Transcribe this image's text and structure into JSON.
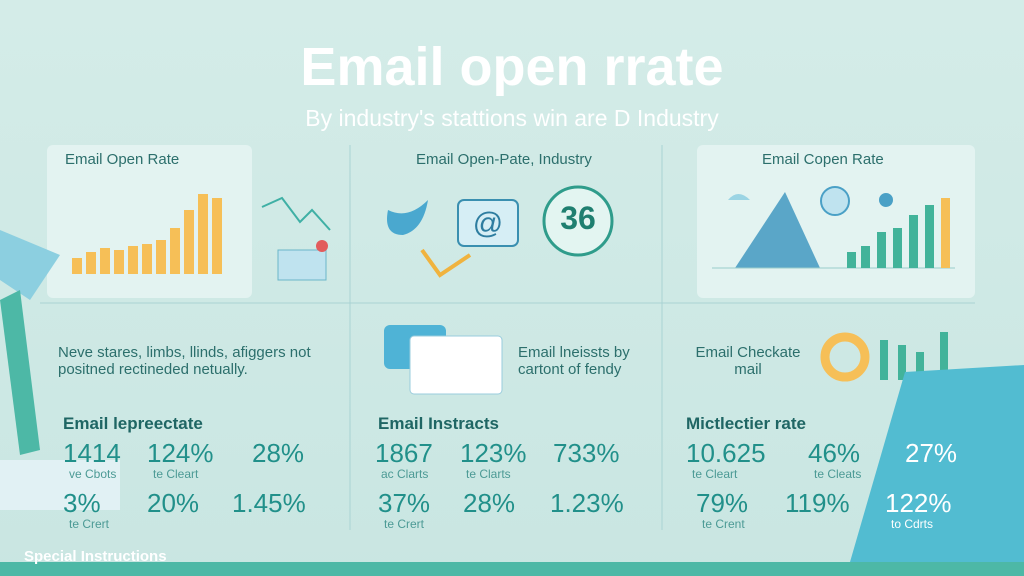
{
  "header": {
    "title": "Email open rrate",
    "subtitle": "By industry's stattions win are D Industry"
  },
  "panels": [
    {
      "title": "Email Open Rate"
    },
    {
      "title": "Email Open-Pate, Industry",
      "badge": "36"
    },
    {
      "title": "Email Copen Rate"
    }
  ],
  "notes": [
    {
      "text": "Neve stares, limbs, llinds, afiggers not positned rectineded netually."
    },
    {
      "text": "Email lneissts by cartont of fendy"
    },
    {
      "text": "Email Checkate mail"
    }
  ],
  "stat_groups": [
    {
      "heading": "Email lepreectate",
      "items": [
        {
          "text": "1414",
          "caption": "ve Cbots"
        },
        {
          "text": "124%",
          "caption": "te Cleart"
        },
        {
          "text": "28%"
        },
        {
          "text": "3%",
          "caption": "te Crert"
        },
        {
          "text": "20%"
        },
        {
          "text": "1.45%"
        }
      ]
    },
    {
      "heading": "Email Instracts",
      "items": [
        {
          "text": "1867",
          "caption": "ac Clarts"
        },
        {
          "text": "123%",
          "caption": "te Clarts"
        },
        {
          "text": "733%"
        },
        {
          "text": "37%",
          "caption": "te Crert"
        },
        {
          "text": "28%"
        },
        {
          "text": "1.23%"
        }
      ]
    },
    {
      "heading": "Mictlectier rate",
      "items": [
        {
          "text": "10.625",
          "caption": "te Cleart"
        },
        {
          "text": "46%",
          "caption": "te Cleats"
        },
        {
          "text": "27%"
        },
        {
          "text": "79%",
          "caption": "te Crent"
        },
        {
          "text": "119%"
        },
        {
          "text": "122%",
          "caption": "to Cdrts"
        }
      ]
    }
  ],
  "footer": {
    "text": "Special Instructions"
  }
}
